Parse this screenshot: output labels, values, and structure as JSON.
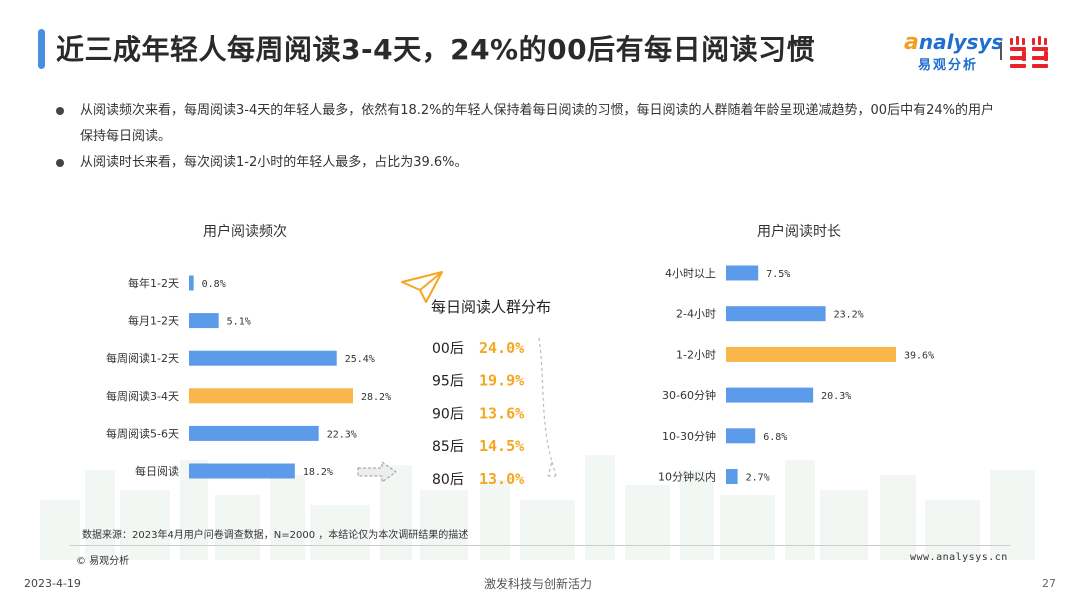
{
  "header": {
    "title": "近三成年轻人每周阅读3-4天，24%的00后有每日阅读习惯",
    "logo_en": "analysys",
    "logo_en_first": "a",
    "logo_cn": "易观分析",
    "partner_logo": "当当",
    "accent_color": "#4a8fe0"
  },
  "bullets": [
    {
      "text": "从阅读频次来看，每周阅读3-4天的年轻人最多，依然有18.2%的年轻人保持着每日阅读的习惯，每日阅读的人群随着年龄呈现递减趋势，00后中有24%的用户保持每日阅读。"
    },
    {
      "text": "从阅读时长来看，每次阅读1-2小时的年轻人最多，占比为39.6%。"
    }
  ],
  "chart_data": [
    {
      "type": "bar",
      "orientation": "horizontal",
      "title": "用户阅读频次",
      "categories": [
        "每年1-2天",
        "每月1-2天",
        "每周阅读1-2天",
        "每周阅读3-4天",
        "每周阅读5-6天",
        "每日阅读"
      ],
      "values": [
        0.8,
        5.1,
        25.4,
        28.2,
        22.3,
        18.2
      ],
      "value_labels": [
        "0.8%",
        "5.1%",
        "25.4%",
        "28.2%",
        "22.3%",
        "18.2%"
      ],
      "highlight_index": 3,
      "unit": "%",
      "grid": false,
      "colors": {
        "bar": "#5b9bea",
        "highlight": "#f9b64a"
      }
    },
    {
      "type": "table",
      "title": "每日阅读人群分布",
      "rows": [
        {
          "label": "00后",
          "value": 24.0,
          "value_label": "24.0%"
        },
        {
          "label": "95后",
          "value": 19.9,
          "value_label": "19.9%"
        },
        {
          "label": "90后",
          "value": 13.6,
          "value_label": "13.6%"
        },
        {
          "label": "85后",
          "value": 14.5,
          "value_label": "14.5%"
        },
        {
          "label": "80后",
          "value": 13.0,
          "value_label": "13.0%"
        }
      ],
      "colors": {
        "value": "#f5a623"
      }
    },
    {
      "type": "bar",
      "orientation": "horizontal",
      "title": "用户阅读时长",
      "categories": [
        "4小时以上",
        "2-4小时",
        "1-2小时",
        "30-60分钟",
        "10-30分钟",
        "10分钟以内"
      ],
      "values": [
        7.5,
        23.2,
        39.6,
        20.3,
        6.8,
        2.7
      ],
      "value_labels": [
        "7.5%",
        "23.2%",
        "39.6%",
        "20.3%",
        "6.8%",
        "2.7%"
      ],
      "highlight_index": 2,
      "unit": "%",
      "grid": false,
      "colors": {
        "bar": "#5b9bea",
        "highlight": "#f9b64a"
      }
    }
  ],
  "source": "数据来源：2023年4月用户问卷调查数据，N=2000 ，本结论仅为本次调研结果的描述",
  "footer": {
    "logo": "© 易观分析",
    "url": "www.analysys.cn",
    "date": "2023-4-19",
    "slogan": "激发科技与创新活力",
    "page": "27"
  }
}
